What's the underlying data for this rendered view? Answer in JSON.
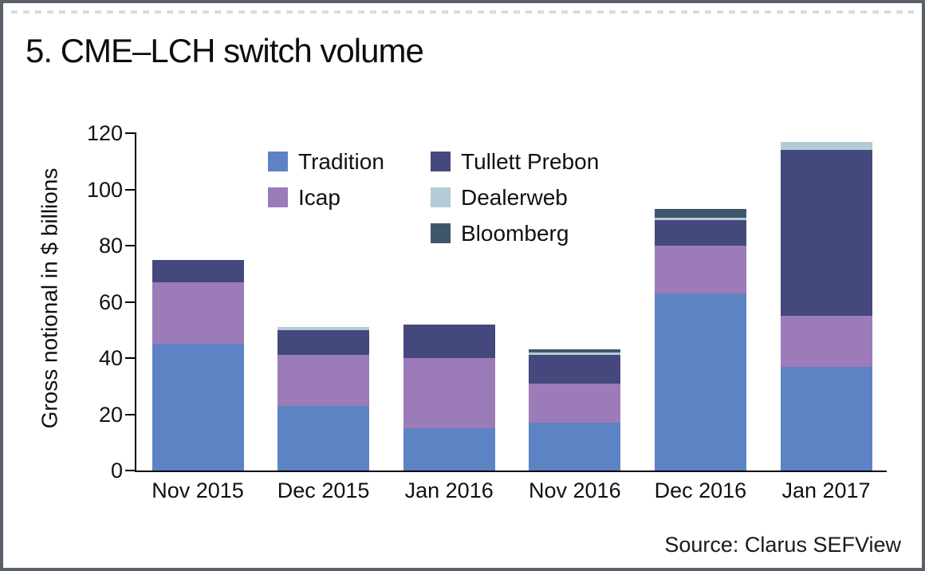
{
  "chart_data": {
    "type": "bar",
    "stacked": true,
    "title": "5. CME–LCH switch volume",
    "ylabel": "Gross notional in $ billions",
    "xlabel": "",
    "source": "Source: Clarus SEFView",
    "categories": [
      "Nov 2015",
      "Dec 2015",
      "Jan 2016",
      "Nov 2016",
      "Dec 2016",
      "Jan 2017"
    ],
    "series": [
      {
        "name": "Tradition",
        "color": "#5e83c4",
        "values": [
          45,
          23,
          15,
          17,
          63,
          37
        ]
      },
      {
        "name": "Icap",
        "color": "#9c7bb9",
        "values": [
          22,
          18,
          25,
          14,
          17,
          18
        ]
      },
      {
        "name": "Tullett Prebon",
        "color": "#45487c",
        "values": [
          8,
          9,
          12,
          10,
          9,
          59
        ]
      },
      {
        "name": "Dealerweb",
        "color": "#b3cbd4",
        "values": [
          0,
          1,
          0,
          1,
          1,
          3
        ]
      },
      {
        "name": "Bloomberg",
        "color": "#3f566a",
        "values": [
          0,
          0,
          0,
          1,
          3,
          0
        ]
      }
    ],
    "ylim": [
      0,
      120
    ],
    "yticks": [
      0,
      20,
      40,
      60,
      80,
      100,
      120
    ],
    "grid": false,
    "legend_position": "inside-top-center",
    "legend_columns": [
      [
        0,
        1
      ],
      [
        2,
        3,
        4
      ]
    ],
    "axis_color": "#000000",
    "frame_color": "#59606a"
  }
}
